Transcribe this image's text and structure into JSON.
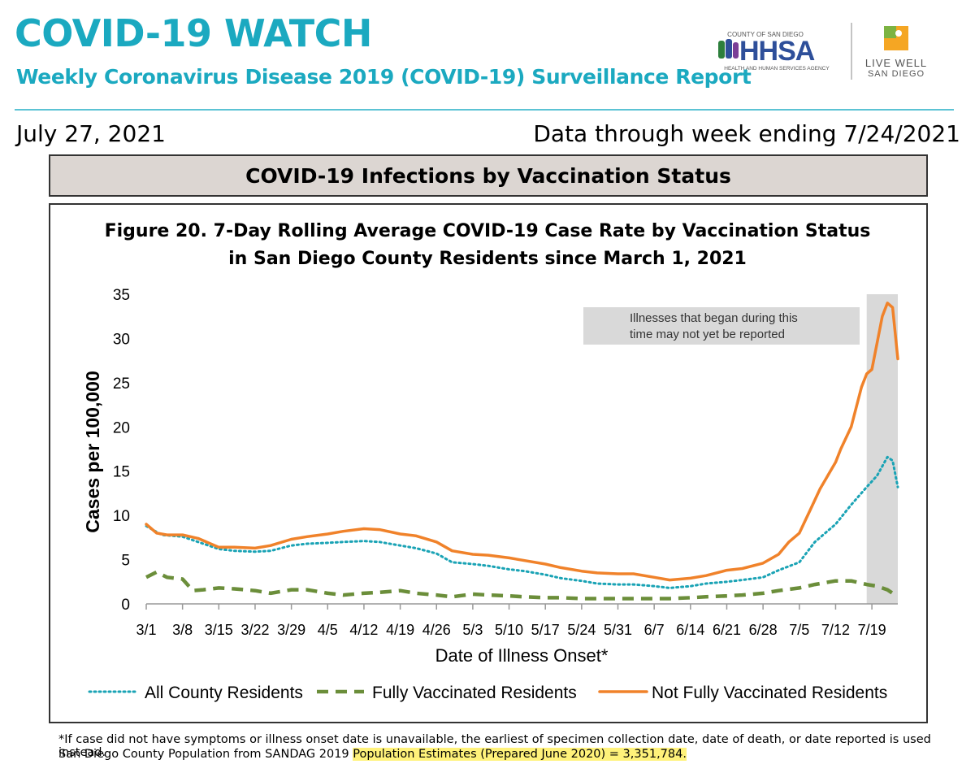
{
  "header": {
    "title": "COVID-19 WATCH",
    "subtitle": "Weekly Coronavirus Disease 2019 (COVID-19) Surveillance Report",
    "report_date": "July 27, 2021",
    "data_through": "Data through week ending 7/24/2021"
  },
  "logos": {
    "hhsa_top": "COUNTY OF SAN DIEGO",
    "hhsa_main": "HHSA",
    "hhsa_bottom": "HEALTH AND HUMAN SERVICES AGENCY",
    "lw_line1": "LIVE WELL",
    "lw_line2": "SAN DIEGO"
  },
  "section_title": "COVID-19 Infections by Vaccination Status",
  "figure_title": {
    "line1": "Figure 20. 7-Day Rolling Average COVID-19 Case Rate by Vaccination Status",
    "line2": "in San Diego County Residents since March 1, 2021"
  },
  "footnote": {
    "line1": "*If case did not have symptoms or illness onset date is unavailable, the earliest of specimen collection date, date of death, or date reported is used instead.",
    "line2_prefix": "San Diego County Population from SANDAG 2019 ",
    "line2_highlight": "Population Estimates (Prepared June 2020) = 3,351,784."
  },
  "colors": {
    "brand_teal": "#1ba9c0",
    "all_residents": "#1aa3b5",
    "fully_vaccinated": "#6b8e3a",
    "not_fully_vaccinated": "#f0822a",
    "shade": "#d9d9d9"
  },
  "chart_data": {
    "type": "line",
    "ylabel": "Cases per 100,000",
    "xlabel": "Date of Illness Onset*",
    "ylim": [
      0,
      35
    ],
    "yticks": [
      0,
      5,
      10,
      15,
      20,
      25,
      30,
      35
    ],
    "xlim": [
      "3/1",
      "7/24"
    ],
    "xticks": [
      "3/1",
      "3/8",
      "3/15",
      "3/22",
      "3/29",
      "4/5",
      "4/12",
      "4/19",
      "4/26",
      "5/3",
      "5/10",
      "5/17",
      "5/24",
      "5/31",
      "6/7",
      "6/14",
      "6/21",
      "6/28",
      "7/5",
      "7/12",
      "7/19"
    ],
    "shaded_region": {
      "from": "7/18",
      "to": "7/24",
      "label": "Illnesses that began during this time may not yet be reported"
    },
    "legend_position": "bottom",
    "series": [
      {
        "name": "All County Residents",
        "style": "dotted",
        "points": [
          [
            "3/1",
            8.8
          ],
          [
            "3/4",
            7.8
          ],
          [
            "3/8",
            7.6
          ],
          [
            "3/11",
            7.0
          ],
          [
            "3/15",
            6.2
          ],
          [
            "3/18",
            6.0
          ],
          [
            "3/22",
            5.9
          ],
          [
            "3/25",
            6.0
          ],
          [
            "3/29",
            6.6
          ],
          [
            "4/1",
            6.8
          ],
          [
            "4/5",
            6.9
          ],
          [
            "4/8",
            7.0
          ],
          [
            "4/12",
            7.1
          ],
          [
            "4/15",
            7.0
          ],
          [
            "4/19",
            6.6
          ],
          [
            "4/22",
            6.3
          ],
          [
            "4/26",
            5.7
          ],
          [
            "4/29",
            4.7
          ],
          [
            "5/3",
            4.5
          ],
          [
            "5/6",
            4.3
          ],
          [
            "5/10",
            3.9
          ],
          [
            "5/13",
            3.7
          ],
          [
            "5/17",
            3.3
          ],
          [
            "5/20",
            2.9
          ],
          [
            "5/24",
            2.6
          ],
          [
            "5/27",
            2.3
          ],
          [
            "5/31",
            2.2
          ],
          [
            "6/3",
            2.2
          ],
          [
            "6/7",
            2.0
          ],
          [
            "6/10",
            1.8
          ],
          [
            "6/14",
            2.0
          ],
          [
            "6/17",
            2.3
          ],
          [
            "6/21",
            2.5
          ],
          [
            "6/24",
            2.7
          ],
          [
            "6/28",
            3.0
          ],
          [
            "7/1",
            3.8
          ],
          [
            "7/5",
            4.7
          ],
          [
            "7/8",
            7.0
          ],
          [
            "7/12",
            9.0
          ],
          [
            "7/15",
            11.2
          ],
          [
            "7/18",
            13.2
          ],
          [
            "7/20",
            14.5
          ],
          [
            "7/22",
            16.6
          ],
          [
            "7/23",
            16.2
          ],
          [
            "7/24",
            13.2
          ]
        ]
      },
      {
        "name": "Fully Vaccinated Residents",
        "style": "dashed",
        "points": [
          [
            "3/1",
            3.0
          ],
          [
            "3/3",
            3.6
          ],
          [
            "3/5",
            3.0
          ],
          [
            "3/8",
            2.8
          ],
          [
            "3/10",
            1.5
          ],
          [
            "3/12",
            1.6
          ],
          [
            "3/15",
            1.8
          ],
          [
            "3/18",
            1.7
          ],
          [
            "3/22",
            1.5
          ],
          [
            "3/25",
            1.2
          ],
          [
            "3/29",
            1.6
          ],
          [
            "4/1",
            1.6
          ],
          [
            "4/5",
            1.2
          ],
          [
            "4/8",
            1.0
          ],
          [
            "4/12",
            1.2
          ],
          [
            "4/15",
            1.3
          ],
          [
            "4/19",
            1.5
          ],
          [
            "4/22",
            1.2
          ],
          [
            "4/26",
            1.0
          ],
          [
            "4/29",
            0.8
          ],
          [
            "5/3",
            1.1
          ],
          [
            "5/6",
            1.0
          ],
          [
            "5/10",
            0.9
          ],
          [
            "5/13",
            0.8
          ],
          [
            "5/17",
            0.7
          ],
          [
            "5/20",
            0.7
          ],
          [
            "5/24",
            0.6
          ],
          [
            "5/27",
            0.6
          ],
          [
            "5/31",
            0.6
          ],
          [
            "6/3",
            0.6
          ],
          [
            "6/7",
            0.6
          ],
          [
            "6/10",
            0.6
          ],
          [
            "6/14",
            0.7
          ],
          [
            "6/17",
            0.8
          ],
          [
            "6/21",
            0.9
          ],
          [
            "6/24",
            1.0
          ],
          [
            "6/28",
            1.2
          ],
          [
            "7/1",
            1.5
          ],
          [
            "7/5",
            1.8
          ],
          [
            "7/8",
            2.2
          ],
          [
            "7/12",
            2.6
          ],
          [
            "7/15",
            2.6
          ],
          [
            "7/18",
            2.2
          ],
          [
            "7/20",
            2.0
          ],
          [
            "7/22",
            1.6
          ],
          [
            "7/24",
            0.8
          ]
        ]
      },
      {
        "name": "Not Fully Vaccinated Residents",
        "style": "solid",
        "points": [
          [
            "3/1",
            9.0
          ],
          [
            "3/3",
            8.0
          ],
          [
            "3/5",
            7.8
          ],
          [
            "3/8",
            7.8
          ],
          [
            "3/11",
            7.4
          ],
          [
            "3/15",
            6.4
          ],
          [
            "3/18",
            6.4
          ],
          [
            "3/22",
            6.3
          ],
          [
            "3/25",
            6.6
          ],
          [
            "3/29",
            7.3
          ],
          [
            "4/1",
            7.6
          ],
          [
            "4/5",
            7.9
          ],
          [
            "4/8",
            8.2
          ],
          [
            "4/12",
            8.5
          ],
          [
            "4/15",
            8.4
          ],
          [
            "4/19",
            7.9
          ],
          [
            "4/22",
            7.7
          ],
          [
            "4/26",
            7.0
          ],
          [
            "4/29",
            6.0
          ],
          [
            "5/3",
            5.6
          ],
          [
            "5/6",
            5.5
          ],
          [
            "5/10",
            5.2
          ],
          [
            "5/13",
            4.9
          ],
          [
            "5/17",
            4.5
          ],
          [
            "5/20",
            4.1
          ],
          [
            "5/24",
            3.7
          ],
          [
            "5/27",
            3.5
          ],
          [
            "5/31",
            3.4
          ],
          [
            "6/3",
            3.4
          ],
          [
            "6/7",
            3.0
          ],
          [
            "6/10",
            2.7
          ],
          [
            "6/14",
            2.9
          ],
          [
            "6/17",
            3.2
          ],
          [
            "6/21",
            3.8
          ],
          [
            "6/24",
            4.0
          ],
          [
            "6/28",
            4.6
          ],
          [
            "7/1",
            5.6
          ],
          [
            "7/3",
            7.0
          ],
          [
            "7/5",
            8.0
          ],
          [
            "7/7",
            10.5
          ],
          [
            "7/9",
            13.0
          ],
          [
            "7/12",
            16.0
          ],
          [
            "7/13",
            17.5
          ],
          [
            "7/15",
            20.0
          ],
          [
            "7/17",
            24.5
          ],
          [
            "7/18",
            26.0
          ],
          [
            "7/19",
            26.5
          ],
          [
            "7/20",
            29.5
          ],
          [
            "7/21",
            32.5
          ],
          [
            "7/22",
            34.0
          ],
          [
            "7/23",
            33.5
          ],
          [
            "7/24",
            27.7
          ]
        ]
      }
    ]
  }
}
